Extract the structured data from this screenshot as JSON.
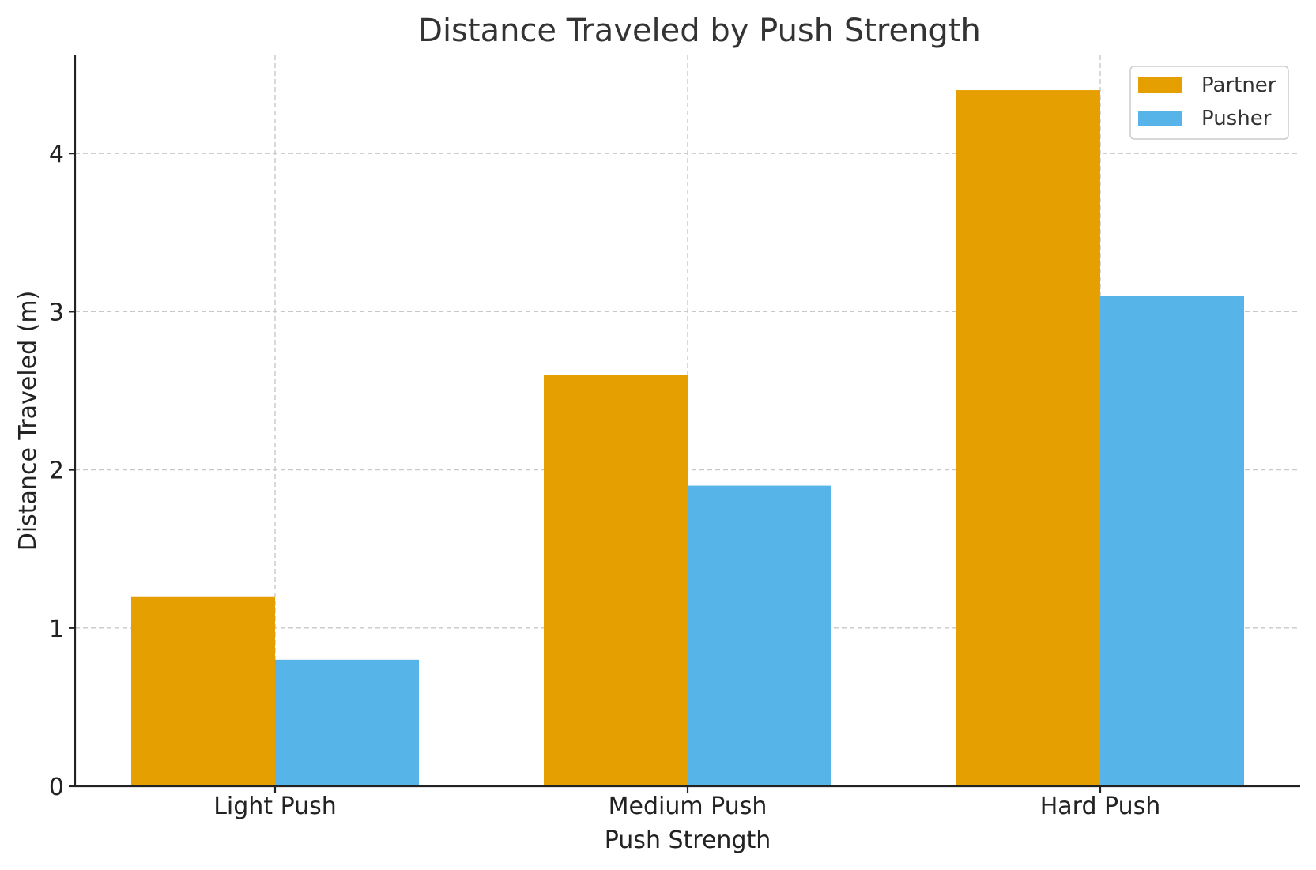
{
  "chart_data": {
    "type": "bar",
    "title": "Distance Traveled by Push Strength",
    "xlabel": "Push Strength",
    "ylabel": "Distance Traveled (m)",
    "categories": [
      "Light Push",
      "Medium Push",
      "Hard Push"
    ],
    "series": [
      {
        "name": "Partner",
        "values": [
          1.2,
          2.6,
          4.4
        ],
        "color": "#E69F00"
      },
      {
        "name": "Pusher",
        "values": [
          0.8,
          1.9,
          3.1
        ],
        "color": "#56B4E9"
      }
    ],
    "ylim": [
      0,
      4.62
    ],
    "yticks": [
      0,
      1,
      2,
      3,
      4
    ],
    "grid": true,
    "legend": "top-right"
  }
}
